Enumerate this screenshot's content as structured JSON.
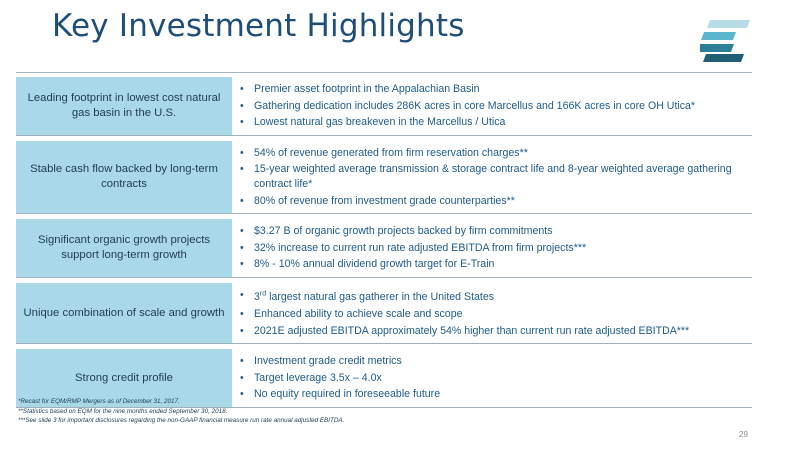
{
  "title": "Key Investment Highlights",
  "rows": [
    {
      "label": "Leading footprint in lowest cost natural gas basin in the U.S.",
      "bullets": [
        "Premier asset footprint in the Appalachian Basin",
        "Gathering dedication includes 286K acres in core Marcellus and 166K acres in core OH Utica*",
        "Lowest natural gas breakeven in the Marcellus / Utica"
      ]
    },
    {
      "label": "Stable cash flow backed by long-term contracts",
      "bullets": [
        "54% of revenue generated from firm reservation charges**",
        "15-year weighted average transmission & storage contract life and 8-year weighted average gathering contract life*",
        "80% of revenue from investment grade counterparties**"
      ]
    },
    {
      "label": "Significant organic growth projects support long-term growth",
      "bullets": [
        "$3.27 B of organic growth projects backed by firm commitments",
        "32% increase to current run rate adjusted EBITDA from firm projects***",
        "8% - 10% annual dividend growth target for E-Train"
      ]
    },
    {
      "label": "Unique combination of scale and growth",
      "bullets": [
        "3rd largest natural gas gatherer in the United States",
        "Enhanced ability to achieve scale and scope",
        "2021E adjusted EBITDA approximately 54% higher than current run rate adjusted EBITDA***"
      ]
    },
    {
      "label": "Strong credit profile",
      "bullets": [
        "Investment grade credit metrics",
        "Target leverage 3.5x – 4.0x",
        "No equity required in foreseeable future"
      ]
    }
  ],
  "footnotes": [
    "*Recast for EQM/RMP Mergers as of December 31, 2017.",
    "**Statistics based on EQM for the nine months ended September 30, 2018.",
    "***See slide 3 for important disclosures regarding the non-GAAP financial measure run rate annual adjusted EBITDA."
  ],
  "page_number": "29",
  "colors": {
    "title": "#1f4e79",
    "label_bg": "#a9d8e8",
    "bullet_text": "#1f5c8a"
  },
  "icons": {
    "logo": "equitrans-e-logo"
  }
}
